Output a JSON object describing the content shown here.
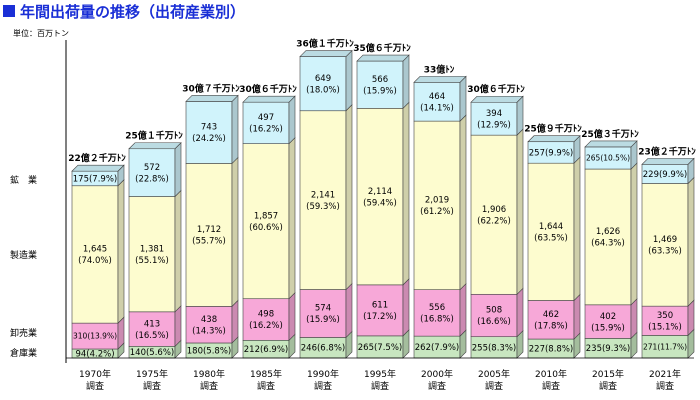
{
  "chart_data": {
    "type": "bar",
    "stacked": true,
    "title": "年間出荷量の推移（出荷産業別）",
    "unit_label": "単位：百万トン",
    "categories": [
      "1970年\n調査",
      "1975年\n調査",
      "1980年\n調査",
      "1985年\n調査",
      "1990年\n調査",
      "1995年\n調査",
      "2000年\n調査",
      "2005年\n調査",
      "2010年\n調査",
      "2015年\n調査",
      "2021年\n調査"
    ],
    "totals_label": [
      "22億２千万ﾄﾝ",
      "25億１千万ﾄﾝ",
      "30億７千万ﾄﾝ",
      "30億６千万ﾄﾝ",
      "36億１千万ﾄﾝ",
      "35億６千万ﾄﾝ",
      "33億ﾄﾝ",
      "30億６千万ﾄﾝ",
      "25億９千万ﾄﾝ",
      "25億３千万ﾄﾝ",
      "23億２千万ﾄﾝ"
    ],
    "series": [
      {
        "name": "倉庫業",
        "color": "#c8e6c0",
        "values": [
          94,
          140,
          180,
          212,
          246,
          265,
          262,
          255,
          227,
          235,
          271
        ],
        "labels": [
          "94(4.2%)",
          "140(5.6%)",
          "180(5.8%)",
          "212(6.9%)",
          "246(6.8%)",
          "265(7.5%)",
          "262(7.9%)",
          "255(8.3%)",
          "227(8.8%)",
          "235(9.3%)",
          "271(11.7%)"
        ]
      },
      {
        "name": "卸売業",
        "color": "#f7a8d8",
        "values": [
          310,
          413,
          438,
          498,
          574,
          611,
          556,
          508,
          462,
          402,
          350
        ],
        "labels": [
          "310(13.9%)",
          "413\n(16.5%)",
          "438\n(14.3%)",
          "498\n(16.2%)",
          "574\n(15.9%)",
          "611\n(17.2%)",
          "556\n(16.8%)",
          "508\n(16.6%)",
          "462\n(17.8%)",
          "402\n(15.9%)",
          "350\n(15.1%)"
        ]
      },
      {
        "name": "製造業",
        "color": "#fdfccf",
        "values": [
          1645,
          1381,
          1712,
          1857,
          2141,
          2114,
          2019,
          1906,
          1644,
          1626,
          1469
        ],
        "labels": [
          "1,645\n(74.0%)",
          "1,381\n(55.1%)",
          "1,712\n(55.7%)",
          "1,857\n(60.6%)",
          "2,141\n(59.3%)",
          "2,114\n(59.4%)",
          "2,019\n(61.2%)",
          "1,906\n(62.2%)",
          "1,644\n(63.5%)",
          "1,626\n(64.3%)",
          "1,469\n(63.3%)"
        ]
      },
      {
        "name": "鉱　業",
        "color": "#d0f3fb",
        "values": [
          175,
          572,
          743,
          497,
          649,
          566,
          464,
          394,
          257,
          265,
          229
        ],
        "labels": [
          "175(7.9%)",
          "572\n(22.8%)",
          "743\n(24.2%)",
          "497\n(16.2%)",
          "649\n(18.0%)",
          "566\n(15.9%)",
          "464\n(14.1%)",
          "394\n(12.9%)",
          "257(9.9%)",
          "265(10.5%)",
          "229(9.9%)"
        ]
      }
    ],
    "legend": "left-side labels"
  }
}
